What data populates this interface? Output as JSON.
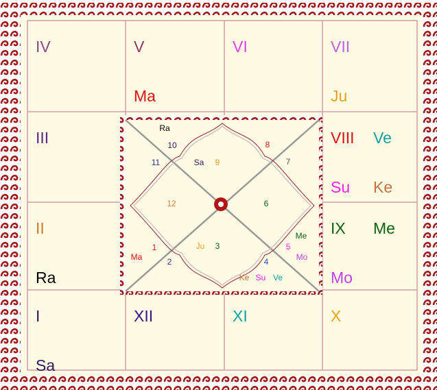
{
  "south_chart": {
    "cells": [
      {
        "sign": "I",
        "color": "#2e1660",
        "planets": [
          {
            "name": "Sa",
            "color": "#2e1660"
          }
        ]
      },
      {
        "sign": "II",
        "color": "#d4782e",
        "planets": [
          {
            "name": "Ra",
            "color": "#000000"
          }
        ]
      },
      {
        "sign": "III",
        "color": "#5a2a86",
        "planets": []
      },
      {
        "sign": "IV",
        "color": "#8a4a8e",
        "planets": []
      },
      {
        "sign": "V",
        "color": "#8e3a6e",
        "planets": [
          {
            "name": "Ma",
            "color": "#e01010"
          }
        ]
      },
      {
        "sign": "VI",
        "color": "#e040e8",
        "planets": []
      },
      {
        "sign": "VII",
        "color": "#c060e8",
        "planets": [
          {
            "name": "Ju",
            "color": "#e8a020"
          }
        ]
      },
      {
        "sign": "VIII",
        "color": "#e01010",
        "planets": [
          {
            "name": "Ve",
            "color": "#10a0a0"
          },
          {
            "name": "Su",
            "color": "#f020f0"
          },
          {
            "name": "Ke",
            "color": "#c87040"
          }
        ]
      },
      {
        "sign": "IX",
        "color": "#106010",
        "planets": [
          {
            "name": "Me",
            "color": "#106010"
          },
          {
            "name": "Mo",
            "color": "#c040f0"
          }
        ]
      },
      {
        "sign": "X",
        "color": "#f0a010",
        "planets": []
      },
      {
        "sign": "XI",
        "color": "#10a0a8",
        "planets": []
      },
      {
        "sign": "XII",
        "color": "#30188a",
        "planets": []
      }
    ]
  },
  "north_chart": {
    "houses": [
      {
        "number": "1",
        "color": "#e01010",
        "planets": [
          {
            "name": "Ma",
            "color": "#e01010"
          }
        ]
      },
      {
        "number": "2",
        "color": "#30309a",
        "planets": []
      },
      {
        "number": "3",
        "color": "#106010",
        "planets": [
          {
            "name": "Ju",
            "color": "#e8a020"
          }
        ]
      },
      {
        "number": "4",
        "color": "#3050c0",
        "planets": [
          {
            "name": "Ke",
            "color": "#c87040"
          },
          {
            "name": "Su",
            "color": "#f020f0"
          },
          {
            "name": "Ve",
            "color": "#10a0a0"
          }
        ]
      },
      {
        "number": "5",
        "color": "#f020f0",
        "planets": [
          {
            "name": "Me",
            "color": "#106010"
          },
          {
            "name": "Mo",
            "color": "#c040f0"
          }
        ]
      },
      {
        "number": "6",
        "color": "#106010",
        "planets": []
      },
      {
        "number": "7",
        "color": "#555555",
        "planets": []
      },
      {
        "number": "8",
        "color": "#e01010",
        "planets": []
      },
      {
        "number": "9",
        "color": "#e8a020",
        "planets": [
          {
            "name": "Sa",
            "color": "#2e1660"
          }
        ]
      },
      {
        "number": "10",
        "color": "#2e1660",
        "planets": [
          {
            "name": "Ra",
            "color": "#000000"
          }
        ]
      },
      {
        "number": "11",
        "color": "#2a2a8a",
        "planets": []
      },
      {
        "number": "12",
        "color": "#e08030",
        "planets": []
      }
    ]
  }
}
